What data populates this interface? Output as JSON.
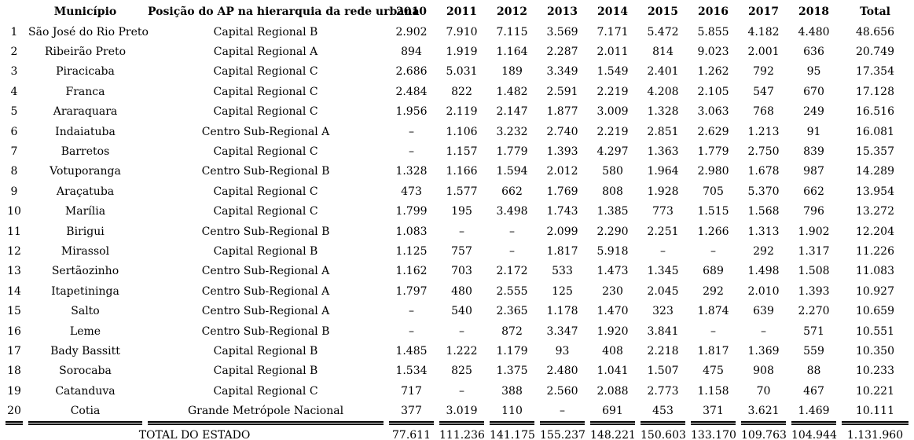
{
  "chart_data": {
    "type": "table",
    "title": "",
    "columns": [
      "",
      "Município",
      "Posição do AP na hierarquia da rede urbana",
      "2010",
      "2011",
      "2012",
      "2013",
      "2014",
      "2015",
      "2016",
      "2017",
      "2018",
      "Total"
    ],
    "rows": [
      [
        "1",
        "São José do Rio Preto",
        "Capital Regional B",
        "2.902",
        "7.910",
        "7.115",
        "3.569",
        "7.171",
        "5.472",
        "5.855",
        "4.182",
        "4.480",
        "48.656"
      ],
      [
        "2",
        "Ribeirão Preto",
        "Capital Regional A",
        "894",
        "1.919",
        "1.164",
        "2.287",
        "2.011",
        "814",
        "9.023",
        "2.001",
        "636",
        "20.749"
      ],
      [
        "3",
        "Piracicaba",
        "Capital Regional C",
        "2.686",
        "5.031",
        "189",
        "3.349",
        "1.549",
        "2.401",
        "1.262",
        "792",
        "95",
        "17.354"
      ],
      [
        "4",
        "Franca",
        "Capital Regional C",
        "2.484",
        "822",
        "1.482",
        "2.591",
        "2.219",
        "4.208",
        "2.105",
        "547",
        "670",
        "17.128"
      ],
      [
        "5",
        "Araraquara",
        "Capital Regional C",
        "1.956",
        "2.119",
        "2.147",
        "1.877",
        "3.009",
        "1.328",
        "3.063",
        "768",
        "249",
        "16.516"
      ],
      [
        "6",
        "Indaiatuba",
        "Centro Sub-Regional A",
        "–",
        "1.106",
        "3.232",
        "2.740",
        "2.219",
        "2.851",
        "2.629",
        "1.213",
        "91",
        "16.081"
      ],
      [
        "7",
        "Barretos",
        "Capital Regional C",
        "–",
        "1.157",
        "1.779",
        "1.393",
        "4.297",
        "1.363",
        "1.779",
        "2.750",
        "839",
        "15.357"
      ],
      [
        "8",
        "Votuporanga",
        "Centro Sub-Regional B",
        "1.328",
        "1.166",
        "1.594",
        "2.012",
        "580",
        "1.964",
        "2.980",
        "1.678",
        "987",
        "14.289"
      ],
      [
        "9",
        "Araçatuba",
        "Capital Regional C",
        "473",
        "1.577",
        "662",
        "1.769",
        "808",
        "1.928",
        "705",
        "5.370",
        "662",
        "13.954"
      ],
      [
        "10",
        "Marília",
        "Capital Regional C",
        "1.799",
        "195",
        "3.498",
        "1.743",
        "1.385",
        "773",
        "1.515",
        "1.568",
        "796",
        "13.272"
      ],
      [
        "11",
        "Birigui",
        "Centro Sub-Regional B",
        "1.083",
        "–",
        "–",
        "2.099",
        "2.290",
        "2.251",
        "1.266",
        "1.313",
        "1.902",
        "12.204"
      ],
      [
        "12",
        "Mirassol",
        "Capital Regional B",
        "1.125",
        "757",
        "–",
        "1.817",
        "5.918",
        "–",
        "–",
        "292",
        "1.317",
        "11.226"
      ],
      [
        "13",
        "Sertãozinho",
        "Centro Sub-Regional A",
        "1.162",
        "703",
        "2.172",
        "533",
        "1.473",
        "1.345",
        "689",
        "1.498",
        "1.508",
        "11.083"
      ],
      [
        "14",
        "Itapetininga",
        "Centro Sub-Regional A",
        "1.797",
        "480",
        "2.555",
        "125",
        "230",
        "2.045",
        "292",
        "2.010",
        "1.393",
        "10.927"
      ],
      [
        "15",
        "Salto",
        "Centro Sub-Regional A",
        "–",
        "540",
        "2.365",
        "1.178",
        "1.470",
        "323",
        "1.874",
        "639",
        "2.270",
        "10.659"
      ],
      [
        "16",
        "Leme",
        "Centro Sub-Regional B",
        "–",
        "–",
        "872",
        "3.347",
        "1.920",
        "3.841",
        "–",
        "–",
        "571",
        "10.551"
      ],
      [
        "17",
        "Bady Bassitt",
        "Capital Regional B",
        "1.485",
        "1.222",
        "1.179",
        "93",
        "408",
        "2.218",
        "1.817",
        "1.369",
        "559",
        "10.350"
      ],
      [
        "18",
        "Sorocaba",
        "Capital Regional B",
        "1.534",
        "825",
        "1.375",
        "2.480",
        "1.041",
        "1.507",
        "475",
        "908",
        "88",
        "10.233"
      ],
      [
        "19",
        "Catanduva",
        "Capital Regional C",
        "717",
        "–",
        "388",
        "2.560",
        "2.088",
        "2.773",
        "1.158",
        "70",
        "467",
        "10.221"
      ],
      [
        "20",
        "Cotia",
        "Grande Metrópole Nacional",
        "377",
        "3.019",
        "110",
        "–",
        "691",
        "453",
        "371",
        "3.621",
        "1.469",
        "10.111"
      ]
    ],
    "total_row": [
      "TOTAL DO ESTADO",
      "77.611",
      "111.236",
      "141.175",
      "155.237",
      "148.221",
      "150.603",
      "133.170",
      "109.763",
      "104.944",
      "1.131.960"
    ]
  }
}
